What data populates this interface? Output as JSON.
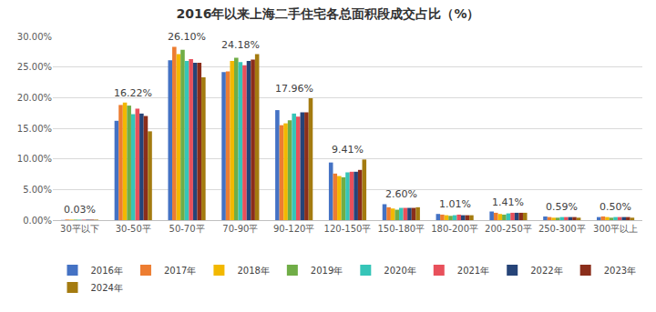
{
  "chart_data": {
    "type": "bar",
    "title": "2016年以来上海二手住宅各总面积段成交占比（%）",
    "categories": [
      "30平以下",
      "30-50平",
      "50-70平",
      "70-90平",
      "90-120平",
      "120-150平",
      "150-180平",
      "180-200平",
      "200-250平",
      "250-300平",
      "300平以上"
    ],
    "series": [
      {
        "name": "2016年",
        "color": "#4472c4",
        "values": [
          0.03,
          16.22,
          26.1,
          24.18,
          17.96,
          9.41,
          2.6,
          1.01,
          1.41,
          0.59,
          0.5
        ],
        "value_labels": [
          "0.03%",
          "16.22%",
          "26.10%",
          "24.18%",
          "17.96%",
          "9.41%",
          "2.60%",
          "1.01%",
          "1.41%",
          "0.59%",
          "0.50%"
        ]
      },
      {
        "name": "2017年",
        "color": "#ed7d31",
        "values": [
          0.1,
          18.8,
          28.3,
          24.3,
          15.5,
          7.6,
          2.1,
          0.9,
          1.2,
          0.5,
          0.6
        ]
      },
      {
        "name": "2018年",
        "color": "#f2b800",
        "values": [
          0.08,
          19.2,
          27.1,
          26.0,
          15.8,
          7.2,
          1.9,
          0.8,
          1.0,
          0.4,
          0.5
        ]
      },
      {
        "name": "2019年",
        "color": "#70ad47",
        "values": [
          0.08,
          18.7,
          27.8,
          26.5,
          16.3,
          7.0,
          1.7,
          0.7,
          0.9,
          0.4,
          0.4
        ]
      },
      {
        "name": "2020年",
        "color": "#36c5b8",
        "values": [
          0.08,
          17.3,
          26.0,
          25.8,
          17.4,
          7.8,
          2.0,
          0.8,
          1.1,
          0.5,
          0.5
        ]
      },
      {
        "name": "2021年",
        "color": "#e8505b",
        "values": [
          0.08,
          18.2,
          26.3,
          25.3,
          16.9,
          7.9,
          2.0,
          0.9,
          1.2,
          0.5,
          0.5
        ]
      },
      {
        "name": "2022年",
        "color": "#264478",
        "values": [
          0.08,
          17.4,
          25.7,
          26.0,
          17.6,
          7.9,
          2.0,
          0.8,
          1.2,
          0.5,
          0.5
        ]
      },
      {
        "name": "2023年",
        "color": "#8b2e1b",
        "values": [
          0.08,
          17.0,
          25.7,
          26.2,
          17.6,
          8.2,
          2.0,
          0.8,
          1.2,
          0.5,
          0.5
        ]
      },
      {
        "name": "2024年",
        "color": "#a47b10",
        "values": [
          0.08,
          14.5,
          23.3,
          27.1,
          19.9,
          9.9,
          2.1,
          0.8,
          1.2,
          0.4,
          0.4
        ]
      }
    ],
    "ylim": [
      0,
      30
    ],
    "yticks": [
      {
        "value": 0,
        "label": "0.00%"
      },
      {
        "value": 5,
        "label": "5.00%"
      },
      {
        "value": 10,
        "label": "10.00%"
      },
      {
        "value": 15,
        "label": "15.00%"
      },
      {
        "value": 20,
        "label": "20.00%"
      },
      {
        "value": 25,
        "label": "25.00%"
      },
      {
        "value": 30,
        "label": "30.00%"
      }
    ],
    "grid": true,
    "legend": "bottom",
    "data_labels": true
  }
}
